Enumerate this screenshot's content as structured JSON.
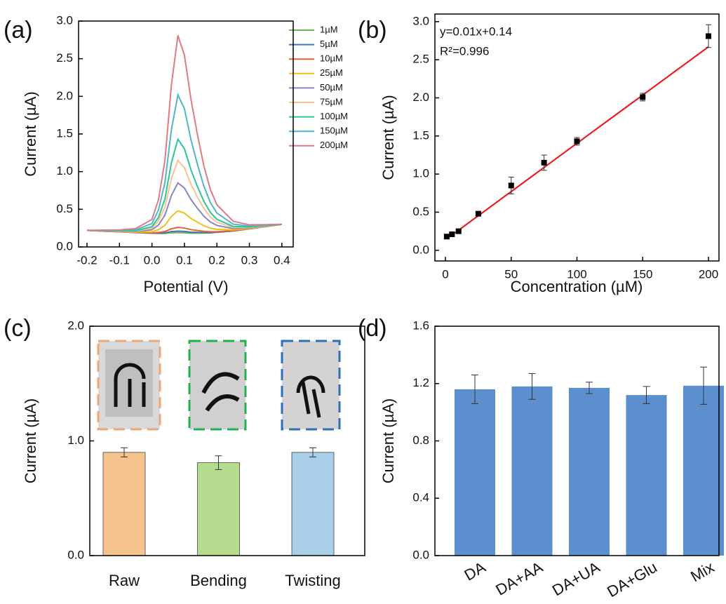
{
  "chart_data": [
    {
      "type": "line",
      "label": "(a)",
      "x_label": "Potential (V)",
      "y_label": "Current (µA)",
      "x": [
        -0.2,
        -0.15,
        -0.1,
        -0.05,
        0,
        0.02,
        0.04,
        0.06,
        0.08,
        0.1,
        0.12,
        0.14,
        0.16,
        0.18,
        0.2,
        0.25,
        0.3,
        0.35,
        0.4
      ],
      "series": [
        {
          "name": "1µM",
          "color": "#6fb35a",
          "values": [
            0.22,
            0.21,
            0.2,
            0.19,
            0.182,
            0.179,
            0.179,
            0.189,
            0.19,
            0.188,
            0.182,
            0.183,
            0.184,
            0.186,
            0.194,
            0.211,
            0.24,
            0.27,
            0.3
          ]
        },
        {
          "name": "5µM",
          "color": "#3a78b8",
          "values": [
            0.22,
            0.21,
            0.2,
            0.191,
            0.183,
            0.183,
            0.187,
            0.204,
            0.21,
            0.206,
            0.196,
            0.193,
            0.19,
            0.19,
            0.196,
            0.212,
            0.241,
            0.27,
            0.3
          ]
        },
        {
          "name": "10µM",
          "color": "#e8622c",
          "values": [
            0.22,
            0.21,
            0.201,
            0.192,
            0.187,
            0.191,
            0.205,
            0.241,
            0.26,
            0.251,
            0.23,
            0.218,
            0.207,
            0.201,
            0.203,
            0.215,
            0.242,
            0.271,
            0.3
          ]
        },
        {
          "name": "25µM",
          "color": "#f2c01c",
          "values": [
            0.22,
            0.212,
            0.203,
            0.196,
            0.202,
            0.229,
            0.287,
            0.406,
            0.48,
            0.449,
            0.379,
            0.328,
            0.282,
            0.249,
            0.234,
            0.226,
            0.246,
            0.273,
            0.3
          ]
        },
        {
          "name": "50µM",
          "color": "#8a84c6",
          "values": [
            0.22,
            0.213,
            0.207,
            0.204,
            0.228,
            0.291,
            0.423,
            0.684,
            0.85,
            0.782,
            0.631,
            0.513,
            0.408,
            0.331,
            0.286,
            0.244,
            0.254,
            0.277,
            0.3
          ]
        },
        {
          "name": "75µM",
          "color": "#f8c48e",
          "values": [
            0.22,
            0.215,
            0.21,
            0.21,
            0.249,
            0.342,
            0.534,
            0.909,
            1.15,
            1.052,
            0.835,
            0.663,
            0.51,
            0.397,
            0.328,
            0.259,
            0.26,
            0.28,
            0.3
          ]
        },
        {
          "name": "100µM",
          "color": "#2ec49a",
          "values": [
            0.22,
            0.216,
            0.213,
            0.215,
            0.269,
            0.39,
            0.638,
            1.119,
            1.43,
            1.304,
            1.025,
            0.803,
            0.605,
            0.458,
            0.367,
            0.273,
            0.265,
            0.283,
            0.3
          ]
        },
        {
          "name": "150µM",
          "color": "#4fb6c8",
          "values": [
            0.22,
            0.219,
            0.219,
            0.227,
            0.31,
            0.49,
            0.856,
            1.561,
            2.02,
            1.835,
            1.426,
            1.098,
            0.806,
            0.588,
            0.45,
            0.303,
            0.277,
            0.289,
            0.3
          ]
        },
        {
          "name": "200µM",
          "color": "#e07a82",
          "values": [
            0.22,
            0.223,
            0.226,
            0.243,
            0.365,
            0.625,
            1.149,
            2.154,
            2.81,
            2.546,
            1.964,
            1.493,
            1.074,
            0.762,
            0.56,
            0.342,
            0.293,
            0.296,
            0.3
          ]
        }
      ],
      "xlim": [
        -0.226,
        0.435
      ],
      "ylim": [
        0,
        3.0
      ],
      "xticks": [
        -0.2,
        -0.1,
        {
          "value": 0,
          "label": "0.0"
        },
        0.1,
        0.2,
        0.3,
        0.4
      ],
      "yticks": [
        {
          "value": 0,
          "label": "0.0"
        },
        0.5,
        {
          "value": 1,
          "label": "1.0"
        },
        1.5,
        {
          "value": 2,
          "label": "2.0"
        },
        2.5,
        {
          "value": 3,
          "label": "3.0"
        }
      ],
      "legend": "upper right"
    },
    {
      "type": "scatter",
      "label": "(b)",
      "x_label": "Concentration (µM)",
      "y_label": "Current (µA)",
      "x": [
        1,
        5,
        10,
        25,
        50,
        75,
        100,
        150,
        200
      ],
      "values": [
        0.18,
        0.21,
        0.25,
        0.48,
        0.85,
        1.15,
        1.43,
        2.01,
        2.81
      ],
      "errors": [
        0.02,
        0.02,
        0.02,
        0.02,
        0.11,
        0.1,
        0.05,
        0.05,
        0.15
      ],
      "color": "#000000",
      "fit": {
        "x": [
          1,
          200
        ],
        "values": [
          0.15,
          2.67
        ],
        "color": "#ee1c1c"
      },
      "annotations": [
        "y=0.01x+0.14",
        "R²=0.996"
      ],
      "xlim": [
        -8,
        208
      ],
      "ylim": [
        -0.14,
        3.1
      ],
      "xticks": [
        0,
        50,
        100,
        150,
        200
      ],
      "yticks": [
        {
          "value": 0,
          "label": "0.0"
        },
        0.5,
        {
          "value": 1,
          "label": "1.0"
        },
        1.5,
        {
          "value": 2,
          "label": "2.0"
        },
        2.5,
        {
          "value": 3,
          "label": "3.0"
        }
      ]
    },
    {
      "type": "bar",
      "label": "(c)",
      "y_label": "Current (µA)",
      "categories": [
        "Raw",
        "Bending",
        "Twisting"
      ],
      "values": [
        0.9,
        0.81,
        0.9
      ],
      "errors": [
        0.04,
        0.06,
        0.04
      ],
      "colors": [
        "#f8c48e",
        "#b5dc8c",
        "#a9cfe8"
      ],
      "ylim": [
        0,
        2.0
      ],
      "yticks": [
        {
          "value": 0,
          "label": "0.0"
        },
        {
          "value": 1,
          "label": "1.0"
        },
        {
          "value": 2,
          "label": "2.0"
        }
      ]
    },
    {
      "type": "bar",
      "label": "(d)",
      "y_label": "Current (µA)",
      "categories": [
        "DA",
        "DA+AA",
        "DA+UA",
        "DA+Glu",
        "Mix"
      ],
      "values": [
        1.16,
        1.18,
        1.17,
        1.12,
        1.185
      ],
      "errors": [
        0.1,
        0.09,
        0.04,
        0.06,
        0.13
      ],
      "color": "#5b8fce",
      "ylim": [
        0,
        1.6
      ],
      "yticks": [
        {
          "value": 0,
          "label": "0.0"
        },
        0.4,
        0.8,
        1.2,
        1.6
      ]
    }
  ]
}
